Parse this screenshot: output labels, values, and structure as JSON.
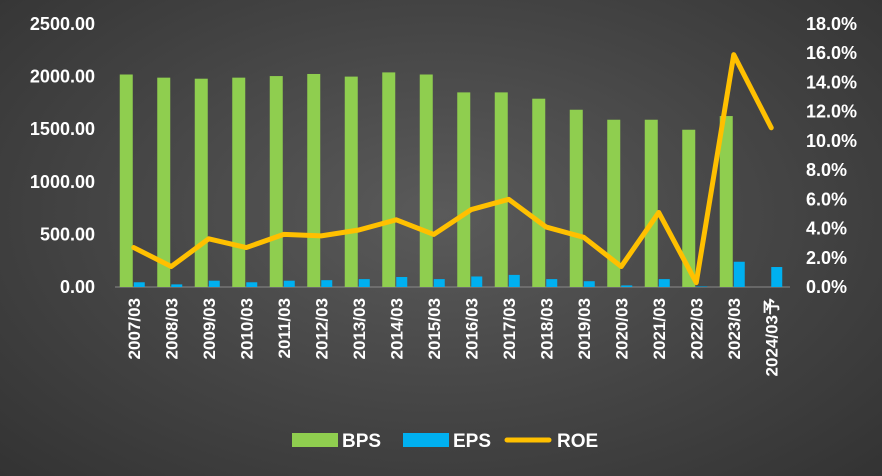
{
  "chart_data": {
    "type": "bar",
    "categories": [
      "2007/03",
      "2008/03",
      "2009/03",
      "2010/03",
      "2011/03",
      "2012/03",
      "2013/03",
      "2014/03",
      "2015/03",
      "2016/03",
      "2017/03",
      "2018/03",
      "2019/03",
      "2020/03",
      "2021/03",
      "2022/03",
      "2023/03",
      "2024/03予"
    ],
    "series": [
      {
        "name": "BPS",
        "kind": "bar",
        "axis": "left",
        "color": "#8fce4f",
        "values": [
          2020,
          1990,
          1980,
          1990,
          2005,
          2025,
          2000,
          2040,
          2020,
          1850,
          1850,
          1790,
          1685,
          1590,
          1590,
          1495,
          1625,
          null
        ]
      },
      {
        "name": "EPS",
        "kind": "bar",
        "axis": "left",
        "color": "#00b0f0",
        "values": [
          45,
          25,
          60,
          45,
          60,
          65,
          75,
          95,
          75,
          100,
          115,
          75,
          55,
          15,
          75,
          5,
          240,
          190
        ]
      },
      {
        "name": "ROE",
        "kind": "line",
        "axis": "right",
        "color": "#ffc000",
        "values": [
          2.7,
          1.4,
          3.3,
          2.7,
          3.6,
          3.5,
          3.9,
          4.6,
          3.6,
          5.3,
          6.0,
          4.1,
          3.4,
          1.4,
          5.1,
          0.3,
          15.9,
          10.9
        ]
      }
    ],
    "y_left": {
      "min": 0,
      "max": 2500,
      "step": 500,
      "tick_labels": [
        "0.00",
        "500.00",
        "1000.00",
        "1500.00",
        "2000.00",
        "2500.00"
      ]
    },
    "y_right": {
      "min": 0,
      "max": 18,
      "step": 2,
      "tick_labels": [
        "0.0%",
        "2.0%",
        "4.0%",
        "6.0%",
        "8.0%",
        "10.0%",
        "12.0%",
        "14.0%",
        "16.0%",
        "18.0%"
      ]
    },
    "grid": false,
    "legend_position": "bottom",
    "title": "",
    "xlabel": "",
    "ylabel": ""
  }
}
